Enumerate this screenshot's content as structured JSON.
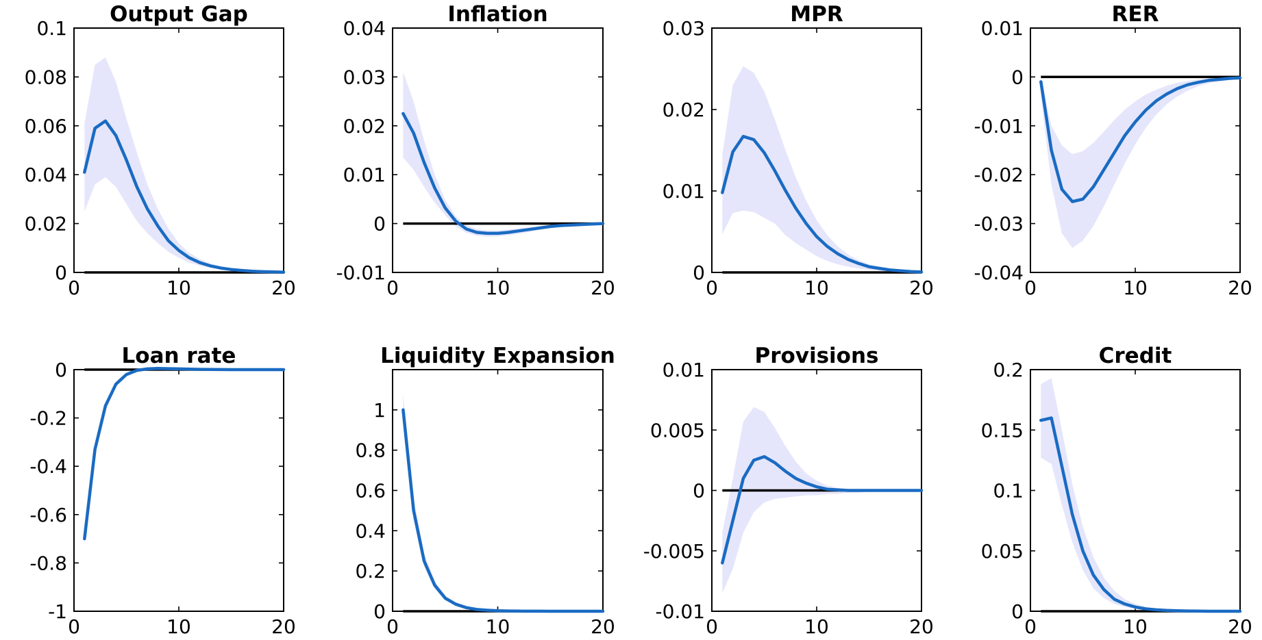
{
  "colors": {
    "line": "#1a6bc2",
    "band": "#e5e6fb",
    "zero": "#000000"
  },
  "chart_data": [
    {
      "type": "line",
      "title": "Output Gap",
      "x": [
        1,
        2,
        3,
        4,
        5,
        6,
        7,
        8,
        9,
        10,
        11,
        12,
        13,
        14,
        15,
        16,
        17,
        18,
        19,
        20
      ],
      "xlim": [
        0,
        20
      ],
      "xticks": [
        0,
        10,
        20
      ],
      "xtick_labels": [
        "0",
        "10",
        "20"
      ],
      "ylim": [
        0,
        0.1
      ],
      "yticks": [
        0,
        0.02,
        0.04,
        0.06,
        0.08,
        0.1
      ],
      "ytick_labels": [
        "0",
        "0.02",
        "0.04",
        "0.06",
        "0.08",
        "0.1"
      ],
      "series": [
        {
          "role": "median",
          "values": [
            0.041,
            0.059,
            0.062,
            0.056,
            0.046,
            0.035,
            0.026,
            0.019,
            0.013,
            0.009,
            0.006,
            0.004,
            0.0027,
            0.0018,
            0.0012,
            0.0008,
            0.0005,
            0.0003,
            0.0002,
            0.0001
          ]
        },
        {
          "role": "upper",
          "values": [
            0.061,
            0.085,
            0.088,
            0.078,
            0.063,
            0.049,
            0.036,
            0.026,
            0.018,
            0.012,
            0.008,
            0.0055,
            0.0037,
            0.0025,
            0.0017,
            0.0011,
            0.0007,
            0.0005,
            0.0003,
            0.0002
          ]
        },
        {
          "role": "lower",
          "values": [
            0.025,
            0.036,
            0.039,
            0.035,
            0.028,
            0.021,
            0.016,
            0.012,
            0.0085,
            0.006,
            0.004,
            0.0028,
            0.0019,
            0.0013,
            0.0009,
            0.0006,
            0.0004,
            0.0003,
            0.0002,
            0.0001
          ]
        }
      ],
      "zero_line": 0
    },
    {
      "type": "line",
      "title": "Inflation",
      "x": [
        1,
        2,
        3,
        4,
        5,
        6,
        7,
        8,
        9,
        10,
        11,
        12,
        13,
        14,
        15,
        16,
        17,
        18,
        19,
        20
      ],
      "xlim": [
        0,
        20
      ],
      "xticks": [
        0,
        10,
        20
      ],
      "xtick_labels": [
        "0",
        "10",
        "20"
      ],
      "ylim": [
        -0.01,
        0.04
      ],
      "yticks": [
        -0.01,
        0,
        0.01,
        0.02,
        0.03,
        0.04
      ],
      "ytick_labels": [
        "-0.01",
        "0",
        "0.01",
        "0.02",
        "0.03",
        "0.04"
      ],
      "series": [
        {
          "role": "median",
          "values": [
            0.0225,
            0.0185,
            0.0125,
            0.0073,
            0.0032,
            0.0005,
            -0.0011,
            -0.0018,
            -0.002,
            -0.002,
            -0.0018,
            -0.0015,
            -0.0012,
            -0.0009,
            -0.0006,
            -0.0004,
            -0.0003,
            -0.0002,
            -0.0001,
            0
          ]
        },
        {
          "role": "upper",
          "values": [
            0.031,
            0.025,
            0.017,
            0.01,
            0.0048,
            0.0015,
            -0.0003,
            -0.0011,
            -0.0014,
            -0.0014,
            -0.0012,
            -0.001,
            -0.0008,
            -0.0006,
            -0.0004,
            -0.0003,
            -0.0002,
            -0.0001,
            0,
            0
          ]
        },
        {
          "role": "lower",
          "values": [
            0.0135,
            0.011,
            0.0075,
            0.0043,
            0.0017,
            -0.0006,
            -0.0019,
            -0.0025,
            -0.0027,
            -0.0026,
            -0.0024,
            -0.0021,
            -0.0017,
            -0.0013,
            -0.0009,
            -0.0006,
            -0.0004,
            -0.0003,
            -0.0002,
            -0.0001
          ]
        }
      ],
      "zero_line": 0
    },
    {
      "type": "line",
      "title": "MPR",
      "x": [
        1,
        2,
        3,
        4,
        5,
        6,
        7,
        8,
        9,
        10,
        11,
        12,
        13,
        14,
        15,
        16,
        17,
        18,
        19,
        20
      ],
      "xlim": [
        0,
        20
      ],
      "xticks": [
        0,
        10,
        20
      ],
      "xtick_labels": [
        "0",
        "10",
        "20"
      ],
      "ylim": [
        0,
        0.03
      ],
      "yticks": [
        0,
        0.01,
        0.02,
        0.03
      ],
      "ytick_labels": [
        "0",
        "0.01",
        "0.02",
        "0.03"
      ],
      "series": [
        {
          "role": "median",
          "values": [
            0.0098,
            0.0148,
            0.0167,
            0.0163,
            0.0147,
            0.0125,
            0.0101,
            0.0079,
            0.006,
            0.0044,
            0.0032,
            0.0023,
            0.0016,
            0.0011,
            0.0007,
            0.0005,
            0.0003,
            0.0002,
            0.0001,
            5e-05
          ]
        },
        {
          "role": "upper",
          "values": [
            0.0145,
            0.023,
            0.0253,
            0.0245,
            0.0222,
            0.0188,
            0.0151,
            0.0117,
            0.0088,
            0.0064,
            0.0046,
            0.0032,
            0.0022,
            0.0015,
            0.001,
            0.0007,
            0.0005,
            0.0003,
            0.0002,
            0.0001
          ]
        },
        {
          "role": "lower",
          "values": [
            0.0047,
            0.0073,
            0.0076,
            0.0074,
            0.0067,
            0.006,
            0.0046,
            0.0036,
            0.0028,
            0.002,
            0.0014,
            0.001,
            0.0007,
            0.0005,
            0.0003,
            0.0002,
            0.0001,
            5e-05,
            0,
            0
          ]
        }
      ],
      "zero_line": 0
    },
    {
      "type": "line",
      "title": "RER",
      "x": [
        1,
        2,
        3,
        4,
        5,
        6,
        7,
        8,
        9,
        10,
        11,
        12,
        13,
        14,
        15,
        16,
        17,
        18,
        19,
        20
      ],
      "xlim": [
        0,
        20
      ],
      "xticks": [
        0,
        10,
        20
      ],
      "xtick_labels": [
        "0",
        "10",
        "20"
      ],
      "ylim": [
        -0.04,
        0.01
      ],
      "yticks": [
        -0.04,
        -0.03,
        -0.02,
        -0.01,
        0,
        0.01
      ],
      "ytick_labels": [
        "-0.04",
        "-0.03",
        "-0.02",
        "-0.01",
        "0",
        "0.01"
      ],
      "series": [
        {
          "role": "median",
          "values": [
            -0.001,
            -0.015,
            -0.023,
            -0.0255,
            -0.025,
            -0.0225,
            -0.019,
            -0.0155,
            -0.012,
            -0.0092,
            -0.0068,
            -0.0049,
            -0.0035,
            -0.0024,
            -0.0016,
            -0.0011,
            -0.0007,
            -0.0005,
            -0.0003,
            -0.0002
          ]
        },
        {
          "role": "upper",
          "values": [
            0,
            -0.01,
            -0.014,
            -0.0158,
            -0.0152,
            -0.0135,
            -0.0112,
            -0.0088,
            -0.0067,
            -0.005,
            -0.0036,
            -0.0026,
            -0.0018,
            -0.0012,
            -0.0008,
            -0.0005,
            -0.0003,
            -0.0002,
            -0.0001,
            0
          ]
        },
        {
          "role": "lower",
          "values": [
            -0.004,
            -0.022,
            -0.032,
            -0.035,
            -0.0335,
            -0.0305,
            -0.0265,
            -0.022,
            -0.0177,
            -0.0138,
            -0.0104,
            -0.0077,
            -0.0056,
            -0.004,
            -0.0028,
            -0.0019,
            -0.0013,
            -0.0009,
            -0.0006,
            -0.0004
          ]
        }
      ],
      "zero_line": 0
    },
    {
      "type": "line",
      "title": "Loan rate",
      "x": [
        1,
        2,
        3,
        4,
        5,
        6,
        7,
        8,
        9,
        10,
        11,
        12,
        13,
        14,
        15,
        16,
        17,
        18,
        19,
        20
      ],
      "xlim": [
        0,
        20
      ],
      "xticks": [
        0,
        10,
        20
      ],
      "xtick_labels": [
        "0",
        "10",
        "20"
      ],
      "ylim": [
        -1,
        0
      ],
      "yticks": [
        -1,
        -0.8,
        -0.6,
        -0.4,
        -0.2,
        0
      ],
      "ytick_labels": [
        "-1",
        "-0.8",
        "-0.6",
        "-0.4",
        "-0.2",
        "0"
      ],
      "series": [
        {
          "role": "median",
          "values": [
            -0.7,
            -0.33,
            -0.15,
            -0.06,
            -0.02,
            -0.003,
            0.003,
            0.005,
            0.004,
            0.003,
            0.002,
            0.001,
            0.0005,
            0.0002,
            0.0001,
            0,
            0,
            0,
            0,
            0
          ]
        },
        {
          "role": "upper",
          "values": [
            -0.69,
            -0.32,
            -0.14,
            -0.05,
            -0.013,
            0.003,
            0.008,
            0.009,
            0.007,
            0.005,
            0.003,
            0.002,
            0.001,
            0.0005,
            0.0002,
            0.0001,
            0,
            0,
            0,
            0
          ]
        },
        {
          "role": "lower",
          "values": [
            -0.72,
            -0.345,
            -0.16,
            -0.07,
            -0.028,
            -0.01,
            -0.003,
            -0.001,
            0,
            0,
            0,
            0,
            0,
            0,
            0,
            0,
            0,
            0,
            0,
            0
          ]
        }
      ],
      "zero_line": 0
    },
    {
      "type": "line",
      "title": "Liquidity Expansion",
      "x": [
        1,
        2,
        3,
        4,
        5,
        6,
        7,
        8,
        9,
        10,
        11,
        12,
        13,
        14,
        15,
        16,
        17,
        18,
        19,
        20
      ],
      "xlim": [
        0,
        20
      ],
      "xticks": [
        0,
        10,
        20
      ],
      "xtick_labels": [
        "0",
        "10",
        "20"
      ],
      "ylim": [
        0,
        1.2
      ],
      "yticks": [
        0,
        0.2,
        0.4,
        0.6,
        0.8,
        1
      ],
      "ytick_labels": [
        "0",
        "0.2",
        "0.4",
        "0.6",
        "0.8",
        "1"
      ],
      "series": [
        {
          "role": "median",
          "values": [
            1,
            0.5,
            0.25,
            0.13,
            0.065,
            0.035,
            0.018,
            0.009,
            0.005,
            0.0025,
            0.0012,
            0.0006,
            0.0003,
            0.0002,
            0.0001,
            0,
            0,
            0,
            0,
            0
          ]
        },
        {
          "role": "upper",
          "values": [
            1.08,
            0.56,
            0.29,
            0.15,
            0.08,
            0.045,
            0.024,
            0.013,
            0.007,
            0.004,
            0.002,
            0.001,
            0.0005,
            0.0003,
            0.0002,
            0.0001,
            0,
            0,
            0,
            0
          ]
        },
        {
          "role": "lower",
          "values": [
            0.92,
            0.45,
            0.22,
            0.11,
            0.055,
            0.028,
            0.014,
            0.007,
            0.004,
            0.002,
            0.001,
            0.0005,
            0.0002,
            0.0001,
            0,
            0,
            0,
            0,
            0,
            0
          ]
        }
      ],
      "zero_line": 0
    },
    {
      "type": "line",
      "title": "Provisions",
      "x": [
        1,
        2,
        3,
        4,
        5,
        6,
        7,
        8,
        9,
        10,
        11,
        12,
        13,
        14,
        15,
        16,
        17,
        18,
        19,
        20
      ],
      "xlim": [
        0,
        20
      ],
      "xticks": [
        0,
        10,
        20
      ],
      "xtick_labels": [
        "0",
        "10",
        "20"
      ],
      "ylim": [
        -0.01,
        0.01
      ],
      "yticks": [
        -0.01,
        -0.005,
        0,
        0.005,
        0.01
      ],
      "ytick_labels": [
        "-0.01",
        "-0.005",
        "0",
        "0.005",
        "0.01"
      ],
      "series": [
        {
          "role": "median",
          "values": [
            -0.006,
            -0.0025,
            0.001,
            0.0025,
            0.0028,
            0.0023,
            0.0016,
            0.001,
            0.0006,
            0.0003,
            0.0001,
            5e-05,
            0,
            0,
            0,
            0,
            0,
            0,
            0,
            0
          ]
        },
        {
          "role": "upper",
          "values": [
            -0.0035,
            0.001,
            0.0057,
            0.0069,
            0.0065,
            0.0052,
            0.0037,
            0.0024,
            0.0014,
            0.0008,
            0.0004,
            0.0002,
            0.0001,
            5e-05,
            0,
            0,
            0,
            0,
            0,
            0
          ]
        },
        {
          "role": "lower",
          "values": [
            -0.0085,
            -0.0065,
            -0.0035,
            -0.0018,
            -0.001,
            -0.0007,
            -0.0006,
            -0.0005,
            -0.0004,
            -0.0004,
            -0.0003,
            -0.0003,
            -0.0002,
            -0.0002,
            -0.0001,
            -0.0001,
            -5e-05,
            0,
            0,
            0
          ]
        }
      ],
      "zero_line": 0
    },
    {
      "type": "line",
      "title": "Credit",
      "x": [
        1,
        2,
        3,
        4,
        5,
        6,
        7,
        8,
        9,
        10,
        11,
        12,
        13,
        14,
        15,
        16,
        17,
        18,
        19,
        20
      ],
      "xlim": [
        0,
        20
      ],
      "xticks": [
        0,
        10,
        20
      ],
      "xtick_labels": [
        "0",
        "10",
        "20"
      ],
      "ylim": [
        0,
        0.2
      ],
      "yticks": [
        0,
        0.05,
        0.1,
        0.15,
        0.2
      ],
      "ytick_labels": [
        "0",
        "0.05",
        "0.1",
        "0.15",
        "0.2"
      ],
      "series": [
        {
          "role": "median",
          "values": [
            0.158,
            0.16,
            0.12,
            0.08,
            0.05,
            0.03,
            0.018,
            0.01,
            0.006,
            0.0035,
            0.002,
            0.0012,
            0.0007,
            0.0004,
            0.0002,
            0.0001,
            0,
            0,
            0,
            0
          ]
        },
        {
          "role": "upper",
          "values": [
            0.188,
            0.193,
            0.15,
            0.105,
            0.07,
            0.045,
            0.028,
            0.017,
            0.01,
            0.006,
            0.0035,
            0.002,
            0.0012,
            0.0007,
            0.0004,
            0.0002,
            0.0001,
            0,
            0,
            0
          ]
        },
        {
          "role": "lower",
          "values": [
            0.127,
            0.122,
            0.088,
            0.057,
            0.034,
            0.019,
            0.011,
            0.006,
            0.0035,
            0.002,
            0.001,
            0.0006,
            0.0003,
            0.0002,
            0.0001,
            0,
            0,
            0,
            0,
            0
          ]
        }
      ],
      "zero_line": 0
    }
  ]
}
